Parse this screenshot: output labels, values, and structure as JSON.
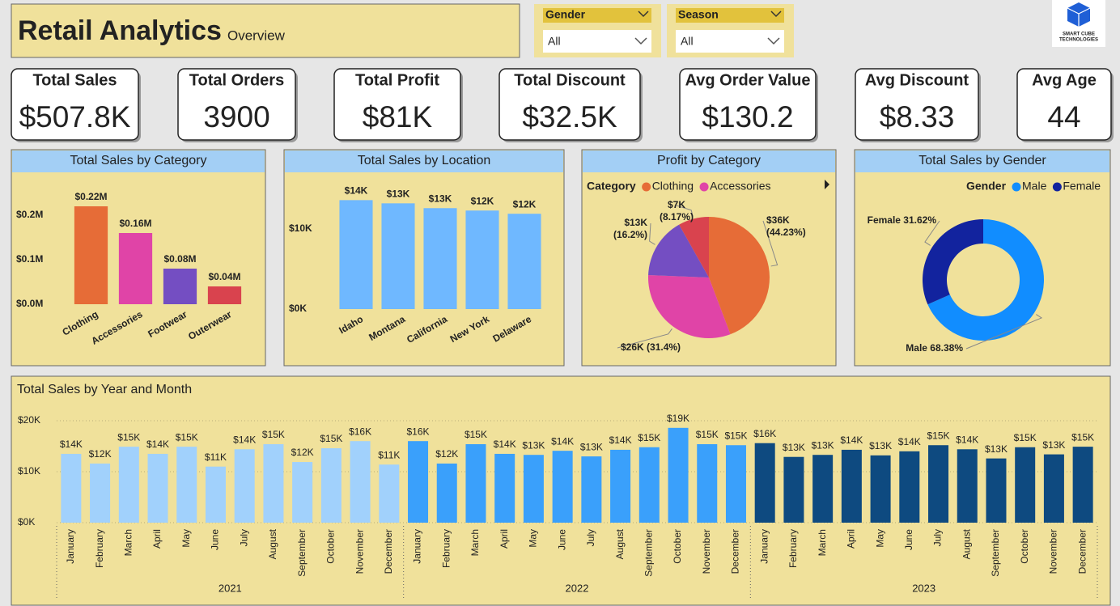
{
  "header": {
    "title": "Retail Analytics",
    "subtitle": "Overview"
  },
  "filters": [
    {
      "label": "Gender",
      "value": "All"
    },
    {
      "label": "Season",
      "value": "All"
    }
  ],
  "logo": {
    "line1": "SMART CUBE",
    "line2": "TECHNOLOGIES"
  },
  "kpis": [
    {
      "label": "Total Sales",
      "value": "$507.8K"
    },
    {
      "label": "Total Orders",
      "value": "3900"
    },
    {
      "label": "Total Profit",
      "value": "$81K"
    },
    {
      "label": "Total Discount",
      "value": "$32.5K"
    },
    {
      "label": "Avg Order Value",
      "value": "$130.2"
    },
    {
      "label": "Avg Discount",
      "value": "$8.33"
    },
    {
      "label": "Avg Age",
      "value": "44"
    }
  ],
  "chart_data": [
    {
      "type": "bar",
      "title": "Total Sales by Category",
      "categories": [
        "Clothing",
        "Accessories",
        "Footwear",
        "Outerwear"
      ],
      "values": [
        220000,
        160000,
        80000,
        40000
      ],
      "value_labels": [
        "$0.22M",
        "$0.16M",
        "$0.08M",
        "$0.04M"
      ],
      "colors": [
        "#e66c37",
        "#e044a7",
        "#744ec2",
        "#d9434e"
      ],
      "ylim": [
        0,
        290000
      ],
      "yticks": [
        {
          "value": 0,
          "label": "$0.0M"
        },
        {
          "value": 100000,
          "label": "$0.1M"
        },
        {
          "value": 200000,
          "label": "$0.2M"
        }
      ],
      "grid": false
    },
    {
      "type": "bar",
      "title": "Total Sales by Location",
      "categories": [
        "Idaho",
        "Montana",
        "California",
        "New York",
        "Delaware"
      ],
      "values": [
        13600,
        13200,
        12600,
        12300,
        11900
      ],
      "value_labels": [
        "$14K",
        "$13K",
        "$13K",
        "$12K",
        "$12K"
      ],
      "color": "#6fb8ff",
      "ylim": [
        0,
        17000
      ],
      "yticks": [
        {
          "value": 0,
          "label": "$0K"
        },
        {
          "value": 10000,
          "label": "$10K"
        }
      ],
      "grid": false
    },
    {
      "type": "pie",
      "title": "Profit by Category",
      "legend_title": "Category",
      "categories": [
        "Clothing",
        "Accessories",
        null,
        null
      ],
      "values": [
        44.23,
        31.4,
        16.2,
        8.17
      ],
      "value_labels": [
        "$36K (44.23%)",
        "$26K (31.4%)",
        "$13K (16.2%)",
        "$7K (8.17%)"
      ],
      "colors": [
        "#e66c37",
        "#e044a7",
        "#744ec2",
        "#d9434e"
      ]
    },
    {
      "type": "donut",
      "title": "Total Sales by Gender",
      "legend_title": "Gender",
      "categories": [
        "Male",
        "Female"
      ],
      "values": [
        68.38,
        31.62
      ],
      "value_labels": [
        "Male 68.38%",
        "Female 31.62%"
      ],
      "colors": [
        "#118dff",
        "#12239e"
      ]
    },
    {
      "type": "bar",
      "title": "Total Sales by Year and Month",
      "categories": [
        "January",
        "February",
        "March",
        "April",
        "May",
        "June",
        "July",
        "August",
        "September",
        "October",
        "November",
        "December"
      ],
      "series": [
        {
          "name": "2021",
          "color": "#a1d1fc",
          "values": [
            13500,
            11600,
            14900,
            13500,
            14900,
            11000,
            14400,
            15400,
            11900,
            14600,
            16000,
            11400
          ],
          "value_labels": [
            "$14K",
            "$12K",
            "$15K",
            "$14K",
            "$15K",
            "$11K",
            "$14K",
            "$15K",
            "$12K",
            "$15K",
            "$16K",
            "$11K"
          ]
        },
        {
          "name": "2022",
          "color": "#3aa0fb",
          "values": [
            16000,
            11600,
            15400,
            13500,
            13300,
            14100,
            13000,
            14300,
            14800,
            18600,
            15400,
            15200
          ],
          "value_labels": [
            "$16K",
            "$12K",
            "$15K",
            "$14K",
            "$13K",
            "$14K",
            "$13K",
            "$14K",
            "$15K",
            "$19K",
            "$15K",
            "$15K"
          ]
        },
        {
          "name": "2023",
          "color": "#0e4a80",
          "values": [
            15600,
            12900,
            13300,
            14300,
            13200,
            14000,
            15200,
            14400,
            12600,
            14800,
            13400,
            14900
          ],
          "value_labels": [
            "$16K",
            "$13K",
            "$13K",
            "$14K",
            "$13K",
            "$14K",
            "$15K",
            "$14K",
            "$13K",
            "$15K",
            "$13K",
            "$15K"
          ]
        }
      ],
      "ylim": [
        0,
        22000
      ],
      "yticks": [
        {
          "value": 0,
          "label": "$0K"
        },
        {
          "value": 10000,
          "label": "$10K"
        },
        {
          "value": 20000,
          "label": "$20K"
        }
      ],
      "grid": true
    }
  ]
}
